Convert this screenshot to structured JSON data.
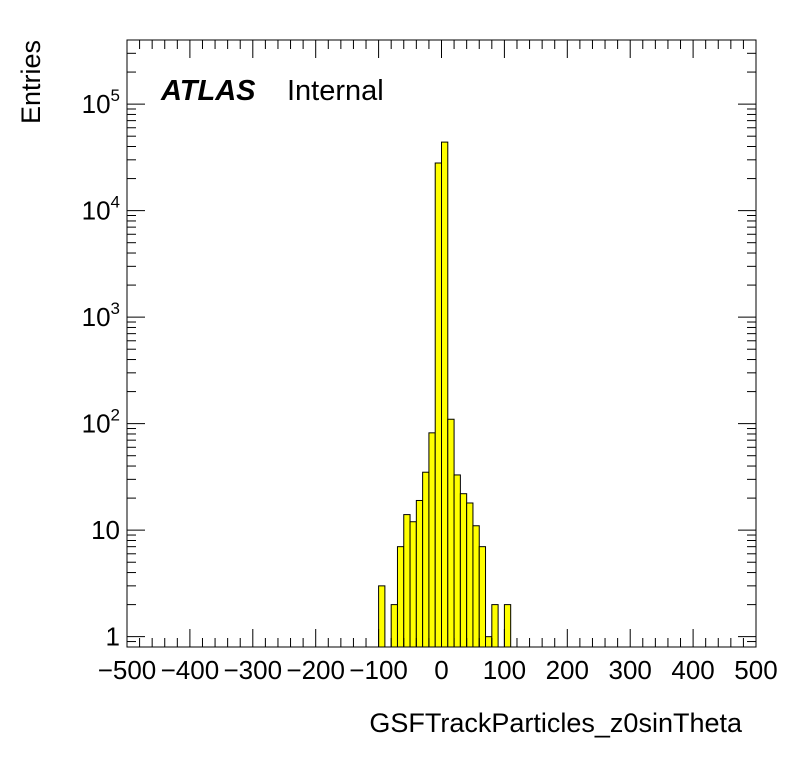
{
  "chart_data": {
    "type": "bar",
    "title": "",
    "xlabel": "GSFTrackParticles_z0sinTheta",
    "ylabel": "Entries",
    "xlim": [
      -500,
      500
    ],
    "ylim": [
      0.8,
      400000
    ],
    "log_y": true,
    "grid": false,
    "legend": "none",
    "bar_color": "#ffff00",
    "edge_color": "#000000",
    "bin_width": 10,
    "bins": [
      {
        "x": -100,
        "value": 3
      },
      {
        "x": -90,
        "value": 0
      },
      {
        "x": -80,
        "value": 2
      },
      {
        "x": -70,
        "value": 7
      },
      {
        "x": -60,
        "value": 14
      },
      {
        "x": -50,
        "value": 12
      },
      {
        "x": -40,
        "value": 19
      },
      {
        "x": -30,
        "value": 35
      },
      {
        "x": -20,
        "value": 82
      },
      {
        "x": -10,
        "value": 28000
      },
      {
        "x": 0,
        "value": 44000
      },
      {
        "x": 10,
        "value": 110
      },
      {
        "x": 20,
        "value": 33
      },
      {
        "x": 30,
        "value": 22
      },
      {
        "x": 40,
        "value": 18
      },
      {
        "x": 50,
        "value": 11
      },
      {
        "x": 60,
        "value": 7
      },
      {
        "x": 70,
        "value": 1
      },
      {
        "x": 80,
        "value": 2
      },
      {
        "x": 90,
        "value": 0
      },
      {
        "x": 100,
        "value": 2
      }
    ],
    "x_ticks": [
      {
        "value": -500,
        "label": "−500"
      },
      {
        "value": -400,
        "label": "−400"
      },
      {
        "value": -300,
        "label": "−300"
      },
      {
        "value": -200,
        "label": "−200"
      },
      {
        "value": -100,
        "label": "−100"
      },
      {
        "value": 0,
        "label": "0"
      },
      {
        "value": 100,
        "label": "100"
      },
      {
        "value": 200,
        "label": "200"
      },
      {
        "value": 300,
        "label": "300"
      },
      {
        "value": 400,
        "label": "400"
      },
      {
        "value": 500,
        "label": "500"
      }
    ],
    "y_ticks": [
      {
        "value": 1,
        "base": "1",
        "exp": ""
      },
      {
        "value": 10,
        "base": "10",
        "exp": ""
      },
      {
        "value": 100,
        "base": "10",
        "exp": "2"
      },
      {
        "value": 1000,
        "base": "10",
        "exp": "3"
      },
      {
        "value": 10000,
        "base": "10",
        "exp": "4"
      },
      {
        "value": 100000,
        "base": "10",
        "exp": "5"
      }
    ],
    "annotations": {
      "atlas": "ATLAS",
      "status": "Internal"
    }
  }
}
